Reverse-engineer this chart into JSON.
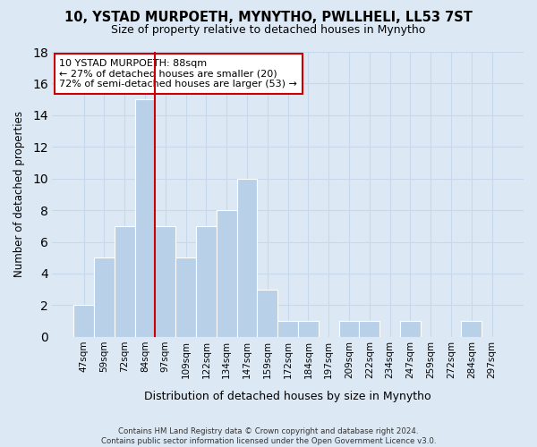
{
  "title": "10, YSTAD MURPOETH, MYNYTHO, PWLLHELI, LL53 7ST",
  "subtitle": "Size of property relative to detached houses in Mynytho",
  "xlabel": "Distribution of detached houses by size in Mynytho",
  "ylabel": "Number of detached properties",
  "bar_labels": [
    "47sqm",
    "59sqm",
    "72sqm",
    "84sqm",
    "97sqm",
    "109sqm",
    "122sqm",
    "134sqm",
    "147sqm",
    "159sqm",
    "172sqm",
    "184sqm",
    "197sqm",
    "209sqm",
    "222sqm",
    "234sqm",
    "247sqm",
    "259sqm",
    "272sqm",
    "284sqm",
    "297sqm"
  ],
  "bar_values": [
    2,
    5,
    7,
    15,
    7,
    5,
    7,
    8,
    10,
    3,
    1,
    1,
    0,
    1,
    1,
    0,
    1,
    0,
    0,
    1,
    0
  ],
  "bar_color": "#b8d0e8",
  "marker_bar_index": 3,
  "marker_color": "#cc0000",
  "ylim": [
    0,
    18
  ],
  "yticks": [
    0,
    2,
    4,
    6,
    8,
    10,
    12,
    14,
    16,
    18
  ],
  "annotation_line1": "10 YSTAD MURPOETH: 88sqm",
  "annotation_line2": "← 27% of detached houses are smaller (20)",
  "annotation_line3": "72% of semi-detached houses are larger (53) →",
  "footer_line1": "Contains HM Land Registry data © Crown copyright and database right 2024.",
  "footer_line2": "Contains public sector information licensed under the Open Government Licence v3.0.",
  "bg_color": "#dce9f5",
  "plot_bg_color": "#dce9f5",
  "grid_color": "#c8d8ec"
}
